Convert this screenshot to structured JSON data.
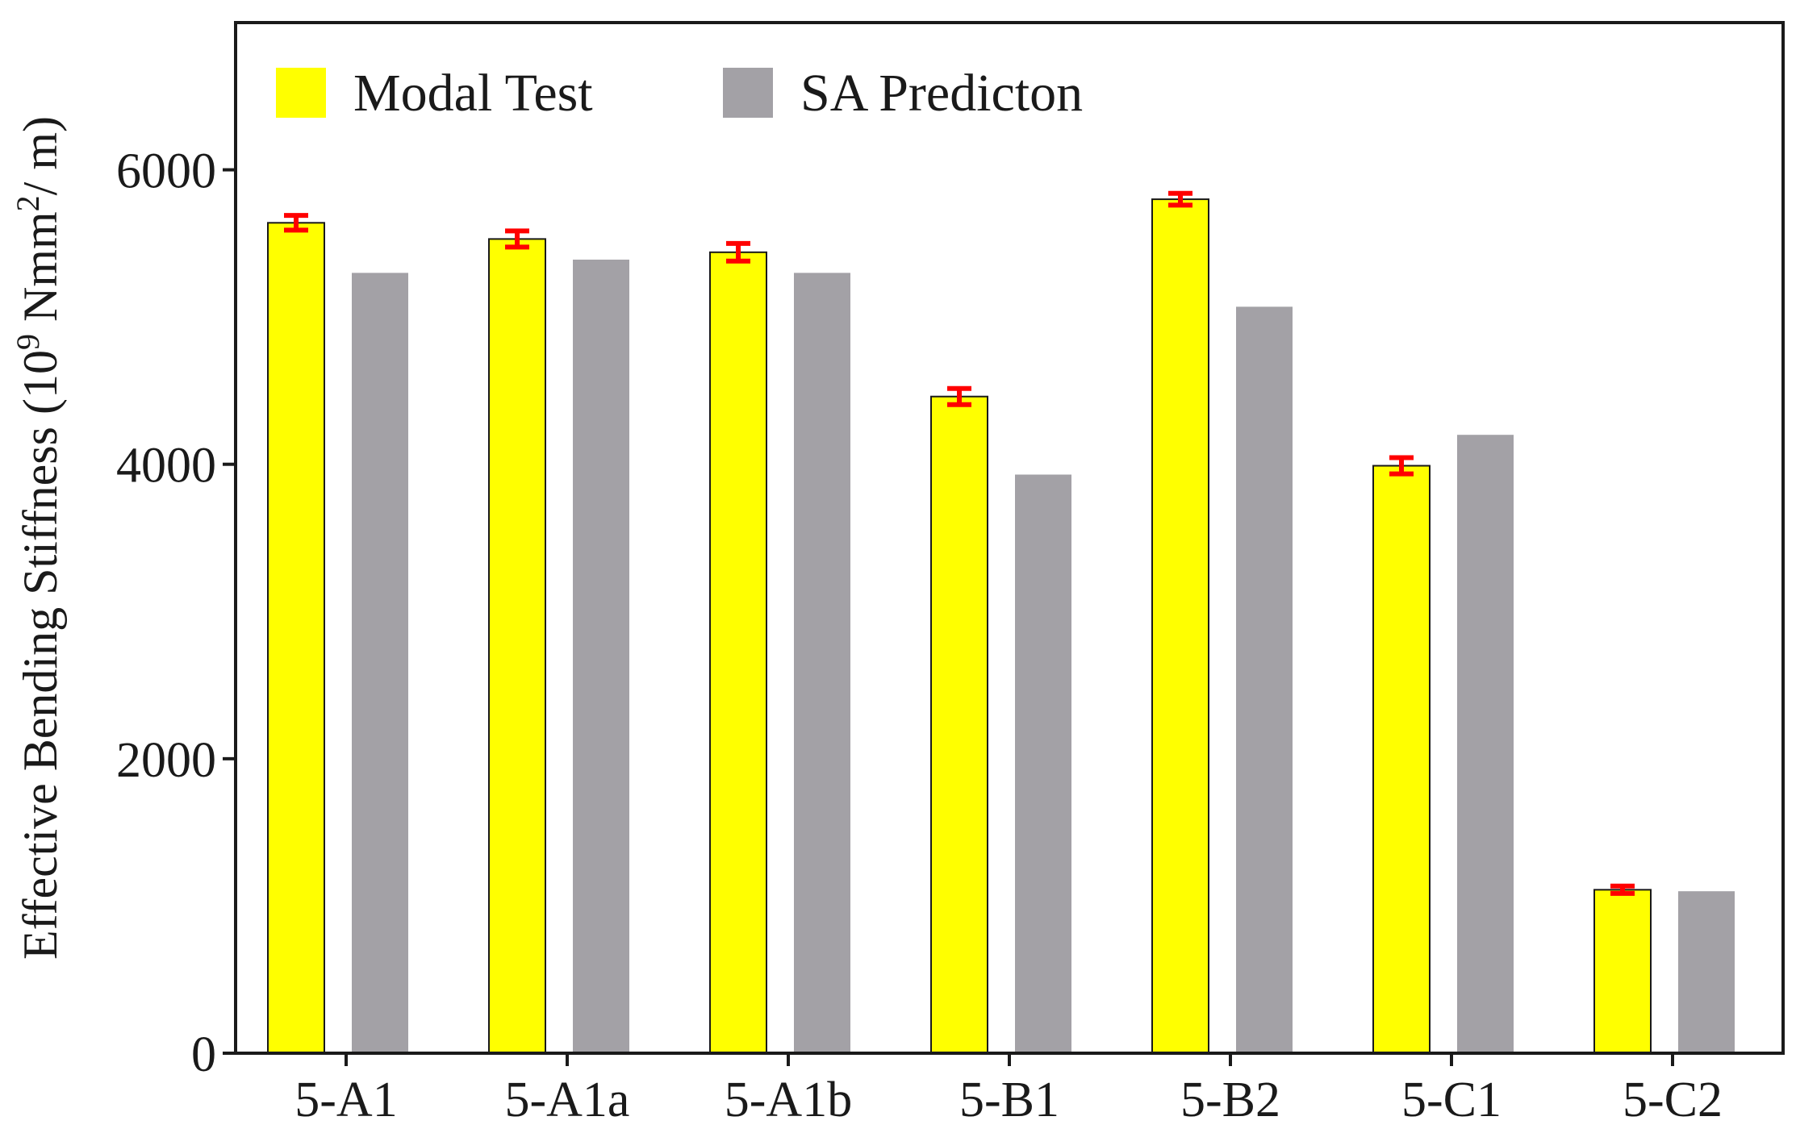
{
  "chart_data": {
    "type": "bar",
    "title": "",
    "xlabel": "",
    "ylabel": {
      "prefix": "Effective Bending Stiffness (10",
      "exp1": "9",
      "middle": " Nmm",
      "exp2": "2",
      "suffix": "/ m)"
    },
    "ylim": [
      0,
      7000
    ],
    "yticks": [
      0,
      2000,
      4000,
      6000
    ],
    "yticks_labels": [
      "0",
      "2000",
      "4000",
      "6000"
    ],
    "grid": false,
    "legend_position": "top-left",
    "categories": [
      "5-A1",
      "5-A1a",
      "5-A1b",
      "5-B1",
      "5-B2",
      "5-C1",
      "5-C2"
    ],
    "series": [
      {
        "name": "Modal Test",
        "color": "#ffff00",
        "edge_color": "#1a1a1a",
        "values": [
          5640,
          5530,
          5440,
          4460,
          5800,
          3990,
          1110
        ],
        "error": [
          50,
          55,
          60,
          55,
          40,
          55,
          25
        ],
        "error_color": "#ff0000"
      },
      {
        "name": "SA Predicton",
        "color": "#a3a1a6",
        "values": [
          5300,
          5390,
          5300,
          3930,
          5070,
          4200,
          1100
        ]
      }
    ]
  }
}
